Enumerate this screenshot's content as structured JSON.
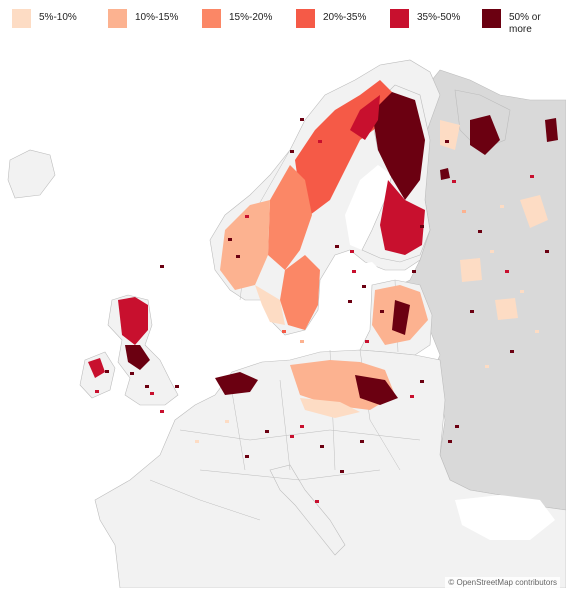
{
  "legend": {
    "items": [
      {
        "label": "5%-10%",
        "color": "#fddcc4"
      },
      {
        "label": "10%-15%",
        "color": "#fcb290"
      },
      {
        "label": "15%-20%",
        "color": "#fb8766"
      },
      {
        "label": "20%-35%",
        "color": "#f55a47"
      },
      {
        "label": "35%-50%",
        "color": "#c8102e"
      },
      {
        "label": "50% or\nmore",
        "color": "#6b0011"
      }
    ]
  },
  "attribution": "© OpenStreetMap contributors",
  "colors": {
    "land_eu": "#f2f2f2",
    "land_east": "#d9d9d9",
    "border": "#bdbdbd",
    "sea": "#ffffff"
  }
}
